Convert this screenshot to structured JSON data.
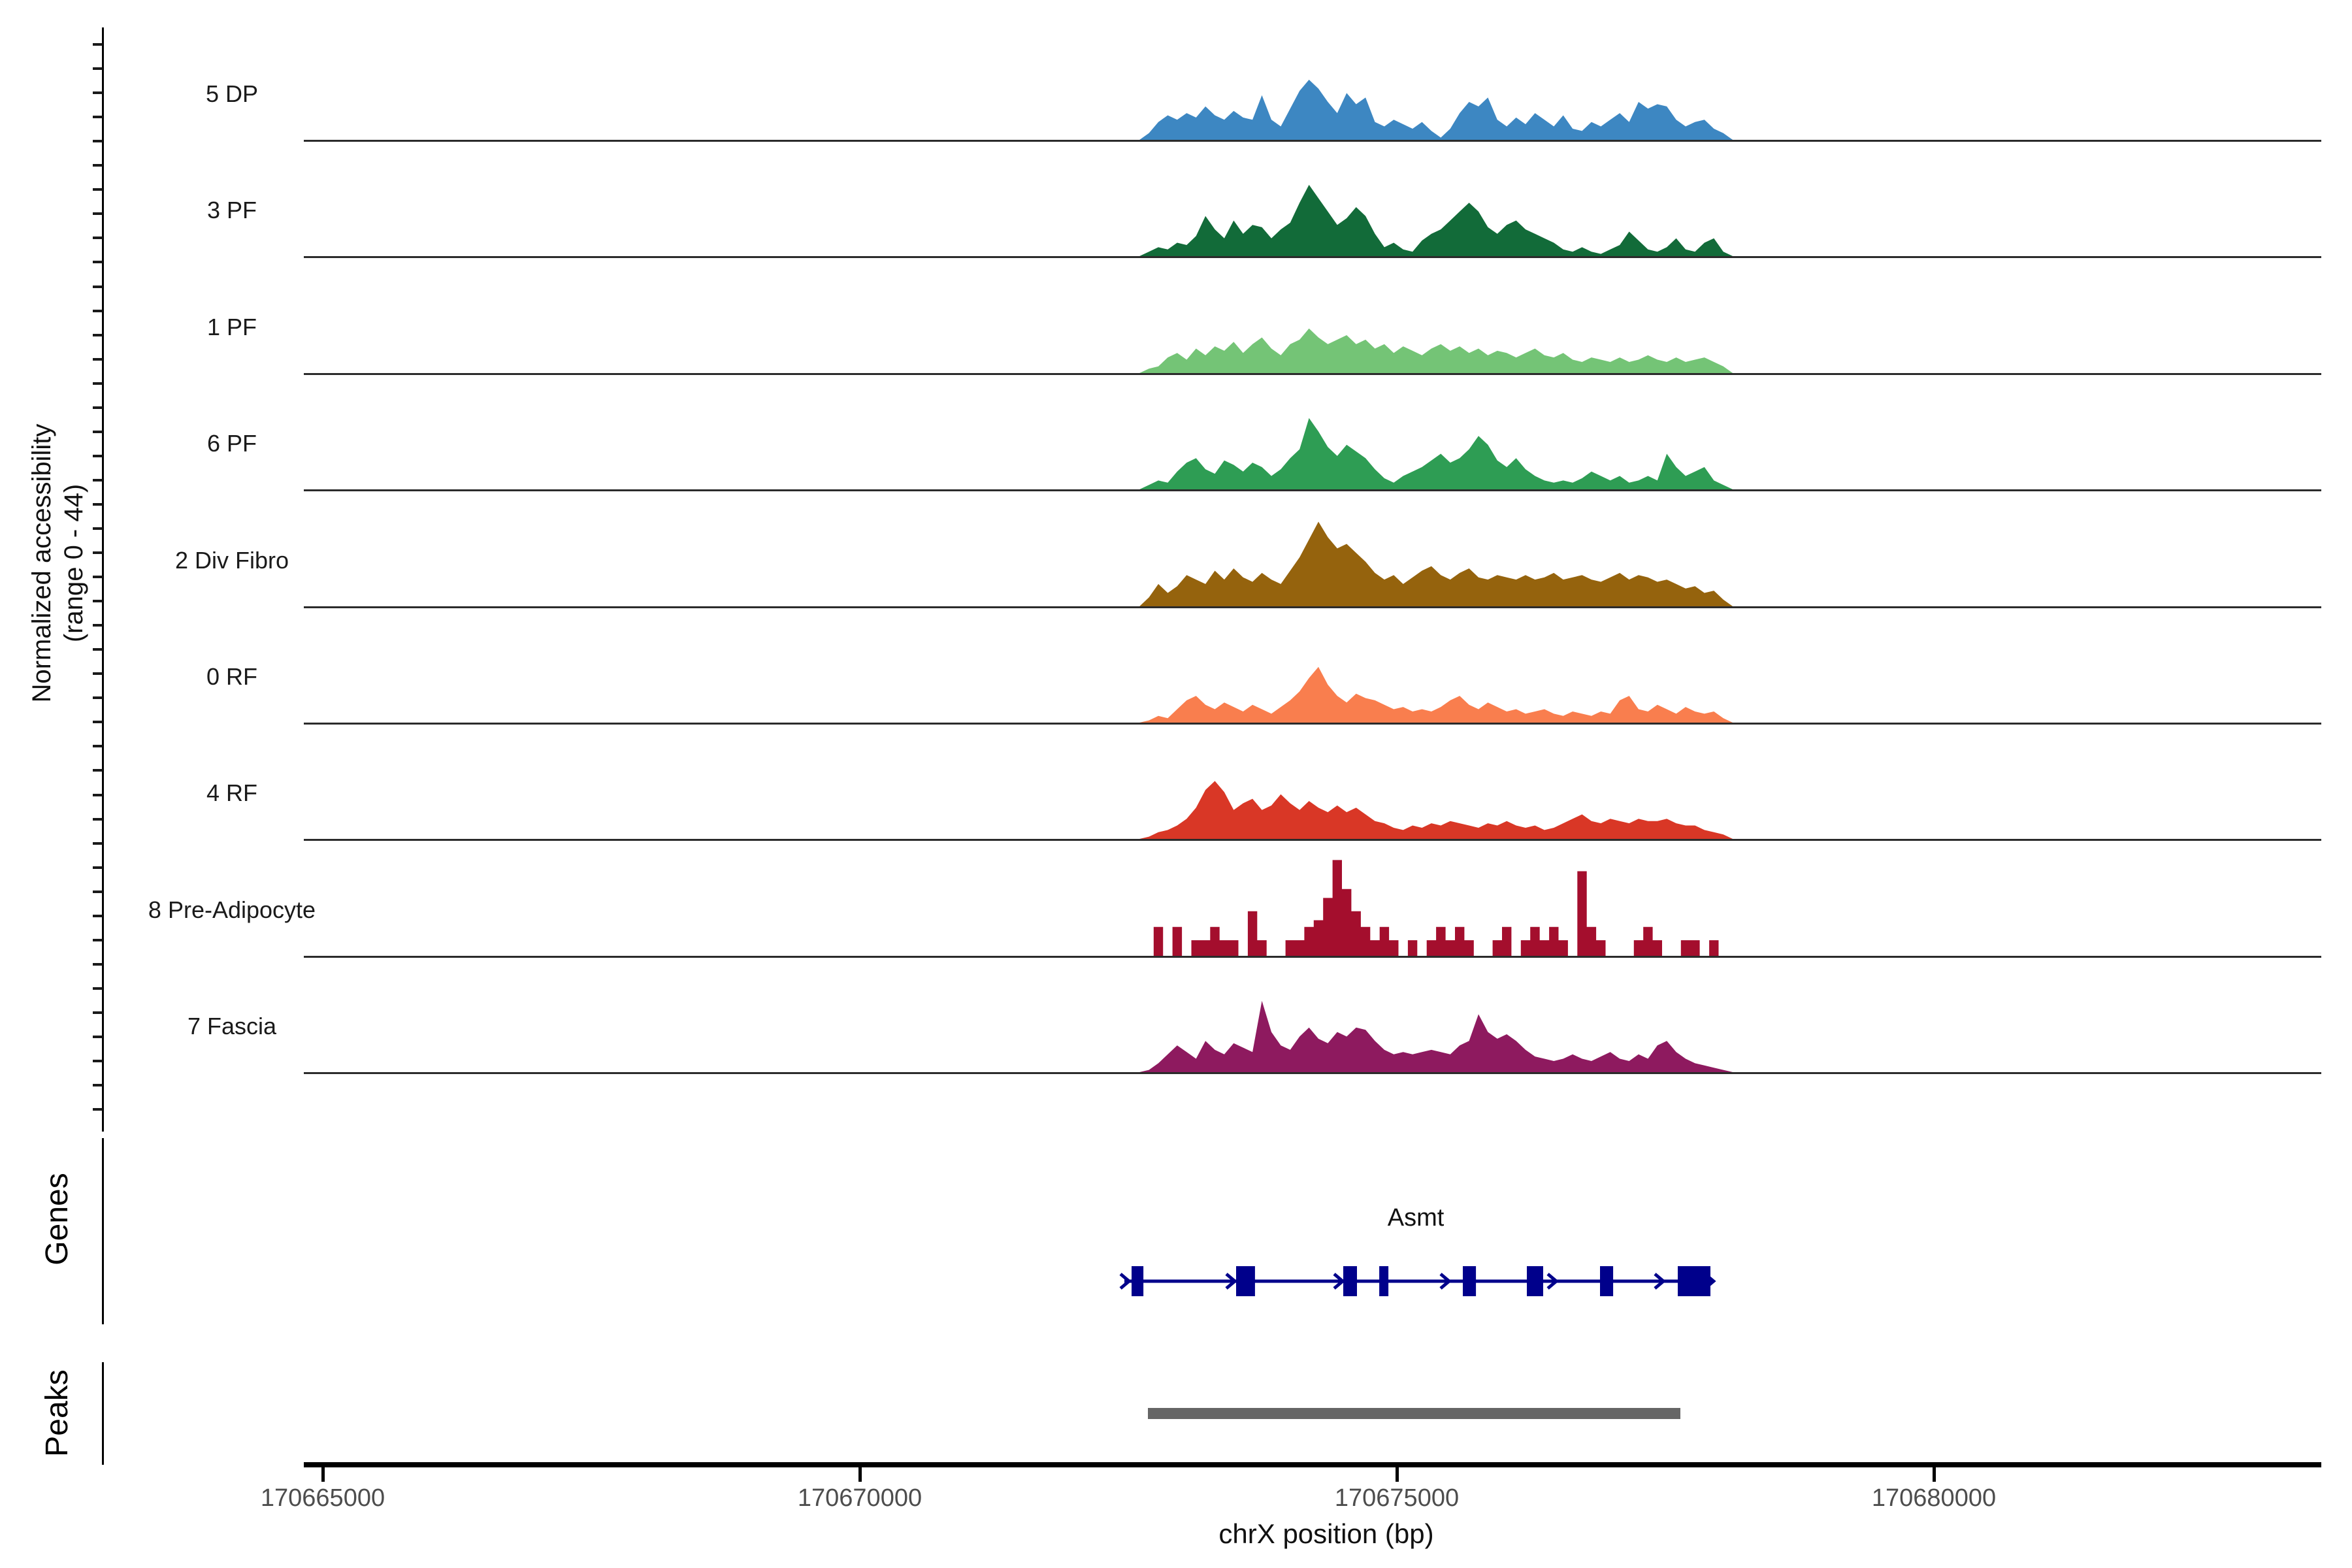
{
  "figure": {
    "y_axis": {
      "label_line1": "Normalized accessibility",
      "label_line2": "(range 0 - 44)"
    },
    "x_axis": {
      "title": "chrX position (bp)",
      "ticks": [
        {
          "label": "170665000",
          "bp": 170665000
        },
        {
          "label": "170670000",
          "bp": 170670000
        },
        {
          "label": "170675000",
          "bp": 170675000
        },
        {
          "label": "170680000",
          "bp": 170680000
        }
      ]
    },
    "sections": {
      "genes_label": "Genes",
      "peaks_label": "Peaks"
    }
  },
  "chart_data": {
    "type": "area",
    "xlabel": "chrX position (bp)",
    "ylabel": "Normalized accessibility (range 0 - 44)",
    "ylim": [
      0,
      44
    ],
    "x_start_bp": 170672560,
    "x_end_bp": 170678170,
    "legend_position": "left-track-labels",
    "grid": false,
    "series": [
      {
        "name": "5 DP",
        "color": "#3D87C2",
        "render": "linear",
        "values": [
          0,
          3,
          8,
          11,
          9,
          12,
          10,
          15,
          11,
          9,
          13,
          10,
          9,
          20,
          9,
          6,
          14,
          22,
          27,
          23,
          17,
          12,
          21,
          16,
          19,
          8,
          6,
          9,
          7,
          5,
          8,
          4,
          1,
          5,
          12,
          17,
          15,
          19,
          9,
          6,
          10,
          7,
          12,
          9,
          6,
          11,
          5,
          4,
          8,
          6,
          9,
          12,
          8,
          17,
          14,
          16,
          15,
          9,
          6,
          8,
          9,
          5,
          3,
          0
        ]
      },
      {
        "name": "3 PF",
        "color": "#126B39",
        "render": "linear",
        "values": [
          0,
          2,
          4,
          3,
          6,
          5,
          9,
          18,
          12,
          8,
          16,
          10,
          14,
          13,
          8,
          12,
          15,
          24,
          32,
          26,
          20,
          14,
          17,
          22,
          18,
          10,
          4,
          6,
          3,
          2,
          7,
          10,
          12,
          16,
          20,
          24,
          20,
          13,
          10,
          14,
          16,
          12,
          10,
          8,
          6,
          3,
          2,
          4,
          2,
          1,
          3,
          5,
          11,
          7,
          3,
          2,
          4,
          8,
          3,
          2,
          6,
          8,
          2,
          0
        ]
      },
      {
        "name": "1 PF",
        "color": "#74C476",
        "render": "linear",
        "values": [
          0,
          2,
          3,
          7,
          9,
          6,
          11,
          8,
          12,
          10,
          14,
          9,
          13,
          16,
          11,
          8,
          13,
          15,
          20,
          16,
          13,
          15,
          17,
          13,
          15,
          11,
          13,
          9,
          12,
          10,
          8,
          11,
          13,
          10,
          12,
          9,
          11,
          8,
          10,
          9,
          7,
          9,
          11,
          8,
          7,
          9,
          6,
          5,
          7,
          6,
          5,
          7,
          5,
          6,
          8,
          6,
          5,
          7,
          5,
          6,
          7,
          5,
          3,
          0
        ]
      },
      {
        "name": "6 PF",
        "color": "#2E9D54",
        "render": "linear",
        "values": [
          0,
          2,
          4,
          3,
          8,
          12,
          14,
          9,
          7,
          13,
          11,
          8,
          12,
          10,
          6,
          9,
          14,
          18,
          32,
          26,
          19,
          15,
          20,
          17,
          14,
          9,
          5,
          3,
          6,
          8,
          10,
          13,
          16,
          12,
          14,
          18,
          24,
          20,
          13,
          10,
          14,
          9,
          6,
          4,
          3,
          4,
          3,
          5,
          8,
          6,
          4,
          6,
          3,
          4,
          6,
          4,
          16,
          10,
          6,
          8,
          10,
          4,
          2,
          0
        ]
      },
      {
        "name": "2 Div Fibro",
        "color": "#95630D",
        "render": "linear",
        "values": [
          0,
          4,
          10,
          6,
          9,
          14,
          12,
          10,
          16,
          12,
          17,
          13,
          11,
          15,
          12,
          10,
          16,
          22,
          30,
          38,
          31,
          26,
          28,
          24,
          20,
          15,
          12,
          14,
          10,
          13,
          16,
          18,
          14,
          12,
          15,
          17,
          13,
          12,
          14,
          13,
          12,
          14,
          12,
          13,
          15,
          12,
          13,
          14,
          12,
          11,
          13,
          15,
          12,
          14,
          13,
          11,
          12,
          10,
          8,
          9,
          6,
          7,
          3,
          0
        ]
      },
      {
        "name": "0 RF",
        "color": "#F97E4E",
        "render": "linear",
        "values": [
          0,
          1,
          3,
          2,
          6,
          10,
          12,
          8,
          6,
          9,
          7,
          5,
          8,
          6,
          4,
          7,
          10,
          14,
          20,
          25,
          17,
          12,
          9,
          13,
          11,
          10,
          8,
          6,
          7,
          5,
          6,
          5,
          7,
          10,
          12,
          8,
          6,
          9,
          7,
          5,
          6,
          4,
          5,
          6,
          4,
          3,
          5,
          4,
          3,
          5,
          4,
          10,
          12,
          6,
          5,
          8,
          6,
          4,
          7,
          5,
          4,
          5,
          2,
          0
        ]
      },
      {
        "name": "4 RF",
        "color": "#D93726",
        "render": "linear",
        "values": [
          0,
          1,
          3,
          4,
          6,
          9,
          14,
          22,
          26,
          21,
          13,
          16,
          18,
          13,
          15,
          20,
          16,
          13,
          17,
          14,
          12,
          15,
          12,
          14,
          11,
          8,
          7,
          5,
          4,
          6,
          5,
          7,
          6,
          8,
          7,
          6,
          5,
          7,
          6,
          8,
          6,
          5,
          6,
          4,
          5,
          7,
          9,
          11,
          8,
          7,
          9,
          8,
          7,
          9,
          8,
          8,
          9,
          7,
          6,
          6,
          4,
          3,
          2,
          0
        ]
      },
      {
        "name": "8 Pre-Adipocyte",
        "color": "#A40E2D",
        "render": "step",
        "values": [
          0,
          0,
          13,
          0,
          13,
          0,
          7,
          7,
          13,
          7,
          7,
          0,
          20,
          7,
          0,
          0,
          7,
          7,
          13,
          16,
          26,
          43,
          30,
          20,
          13,
          7,
          13,
          7,
          0,
          7,
          0,
          7,
          13,
          7,
          13,
          7,
          0,
          0,
          7,
          13,
          0,
          7,
          13,
          7,
          13,
          7,
          0,
          38,
          13,
          7,
          0,
          0,
          0,
          7,
          13,
          7,
          0,
          0,
          7,
          7,
          0,
          7,
          0,
          0
        ]
      },
      {
        "name": "7 Fascia",
        "color": "#8E1A5F",
        "render": "linear",
        "values": [
          0,
          1,
          4,
          8,
          12,
          9,
          6,
          14,
          10,
          8,
          13,
          11,
          9,
          32,
          18,
          12,
          10,
          16,
          20,
          15,
          13,
          18,
          16,
          20,
          19,
          14,
          10,
          8,
          9,
          8,
          9,
          10,
          9,
          8,
          12,
          14,
          26,
          18,
          15,
          17,
          14,
          10,
          7,
          6,
          5,
          6,
          8,
          6,
          5,
          7,
          9,
          6,
          5,
          8,
          6,
          12,
          14,
          9,
          6,
          4,
          3,
          2,
          1,
          0
        ]
      }
    ],
    "gene_track": {
      "gene_name": "Asmt",
      "chrom": "chrX",
      "strand": "+",
      "start_bp": 170672463,
      "end_bp": 170677944,
      "color": "#00008B",
      "exons_bp": [
        [
          170672530,
          170672640
        ],
        [
          170673503,
          170673679
        ],
        [
          170674501,
          170674629
        ],
        [
          170674836,
          170674921
        ],
        [
          170675614,
          170675736
        ],
        [
          170676210,
          170676362
        ],
        [
          170676891,
          170677013
        ],
        [
          170677615,
          170677919
        ]
      ],
      "arrow_positions_bp": [
        170672488,
        170673473,
        170674477,
        170675468,
        170676466,
        170677463,
        170677930
      ]
    },
    "peaks_track": {
      "color": "#666666",
      "regions_bp": [
        [
          170672680,
          170677640
        ]
      ]
    }
  }
}
